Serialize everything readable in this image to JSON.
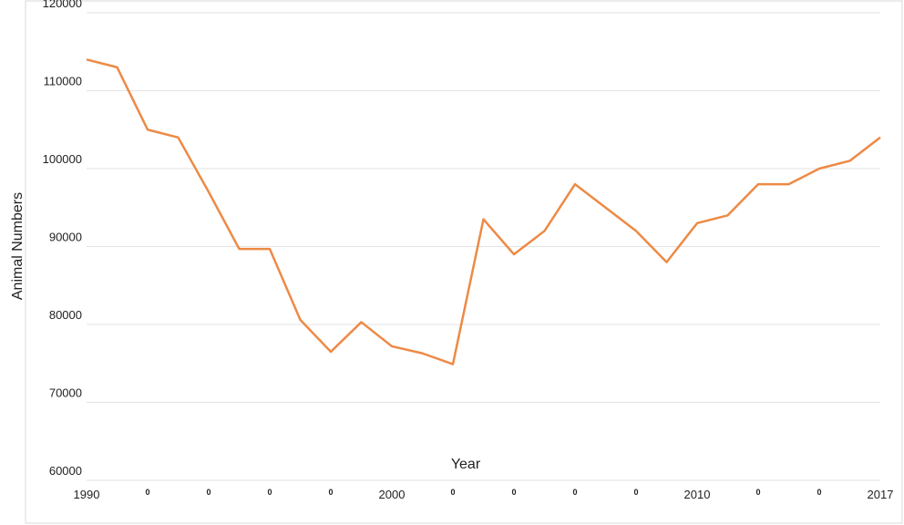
{
  "chart_data": {
    "type": "line",
    "x_label": "Year",
    "y_label": "Animal Numbers",
    "categories": [
      "1990",
      null,
      "0",
      null,
      "0",
      null,
      "0",
      null,
      "0",
      null,
      "2000",
      null,
      "0",
      null,
      "0",
      null,
      "0",
      null,
      "0",
      null,
      "2010",
      null,
      "0",
      null,
      "0",
      null,
      "2017"
    ],
    "series": [
      {
        "name": "Animal Numbers",
        "color": "#ed8a45",
        "values": [
          114000,
          113000,
          105000,
          104000,
          97000,
          89700,
          89700,
          80600,
          76500,
          80300,
          77200,
          76300,
          74900,
          93500,
          89000,
          92000,
          98000,
          95000,
          92000,
          88000,
          93000,
          94000,
          98000,
          98000,
          100000,
          101000,
          104000
        ]
      }
    ],
    "ylim": [
      60000,
      120000
    ],
    "yticks": [
      60000,
      70000,
      80000,
      90000,
      100000,
      110000,
      120000
    ],
    "grid": true
  }
}
